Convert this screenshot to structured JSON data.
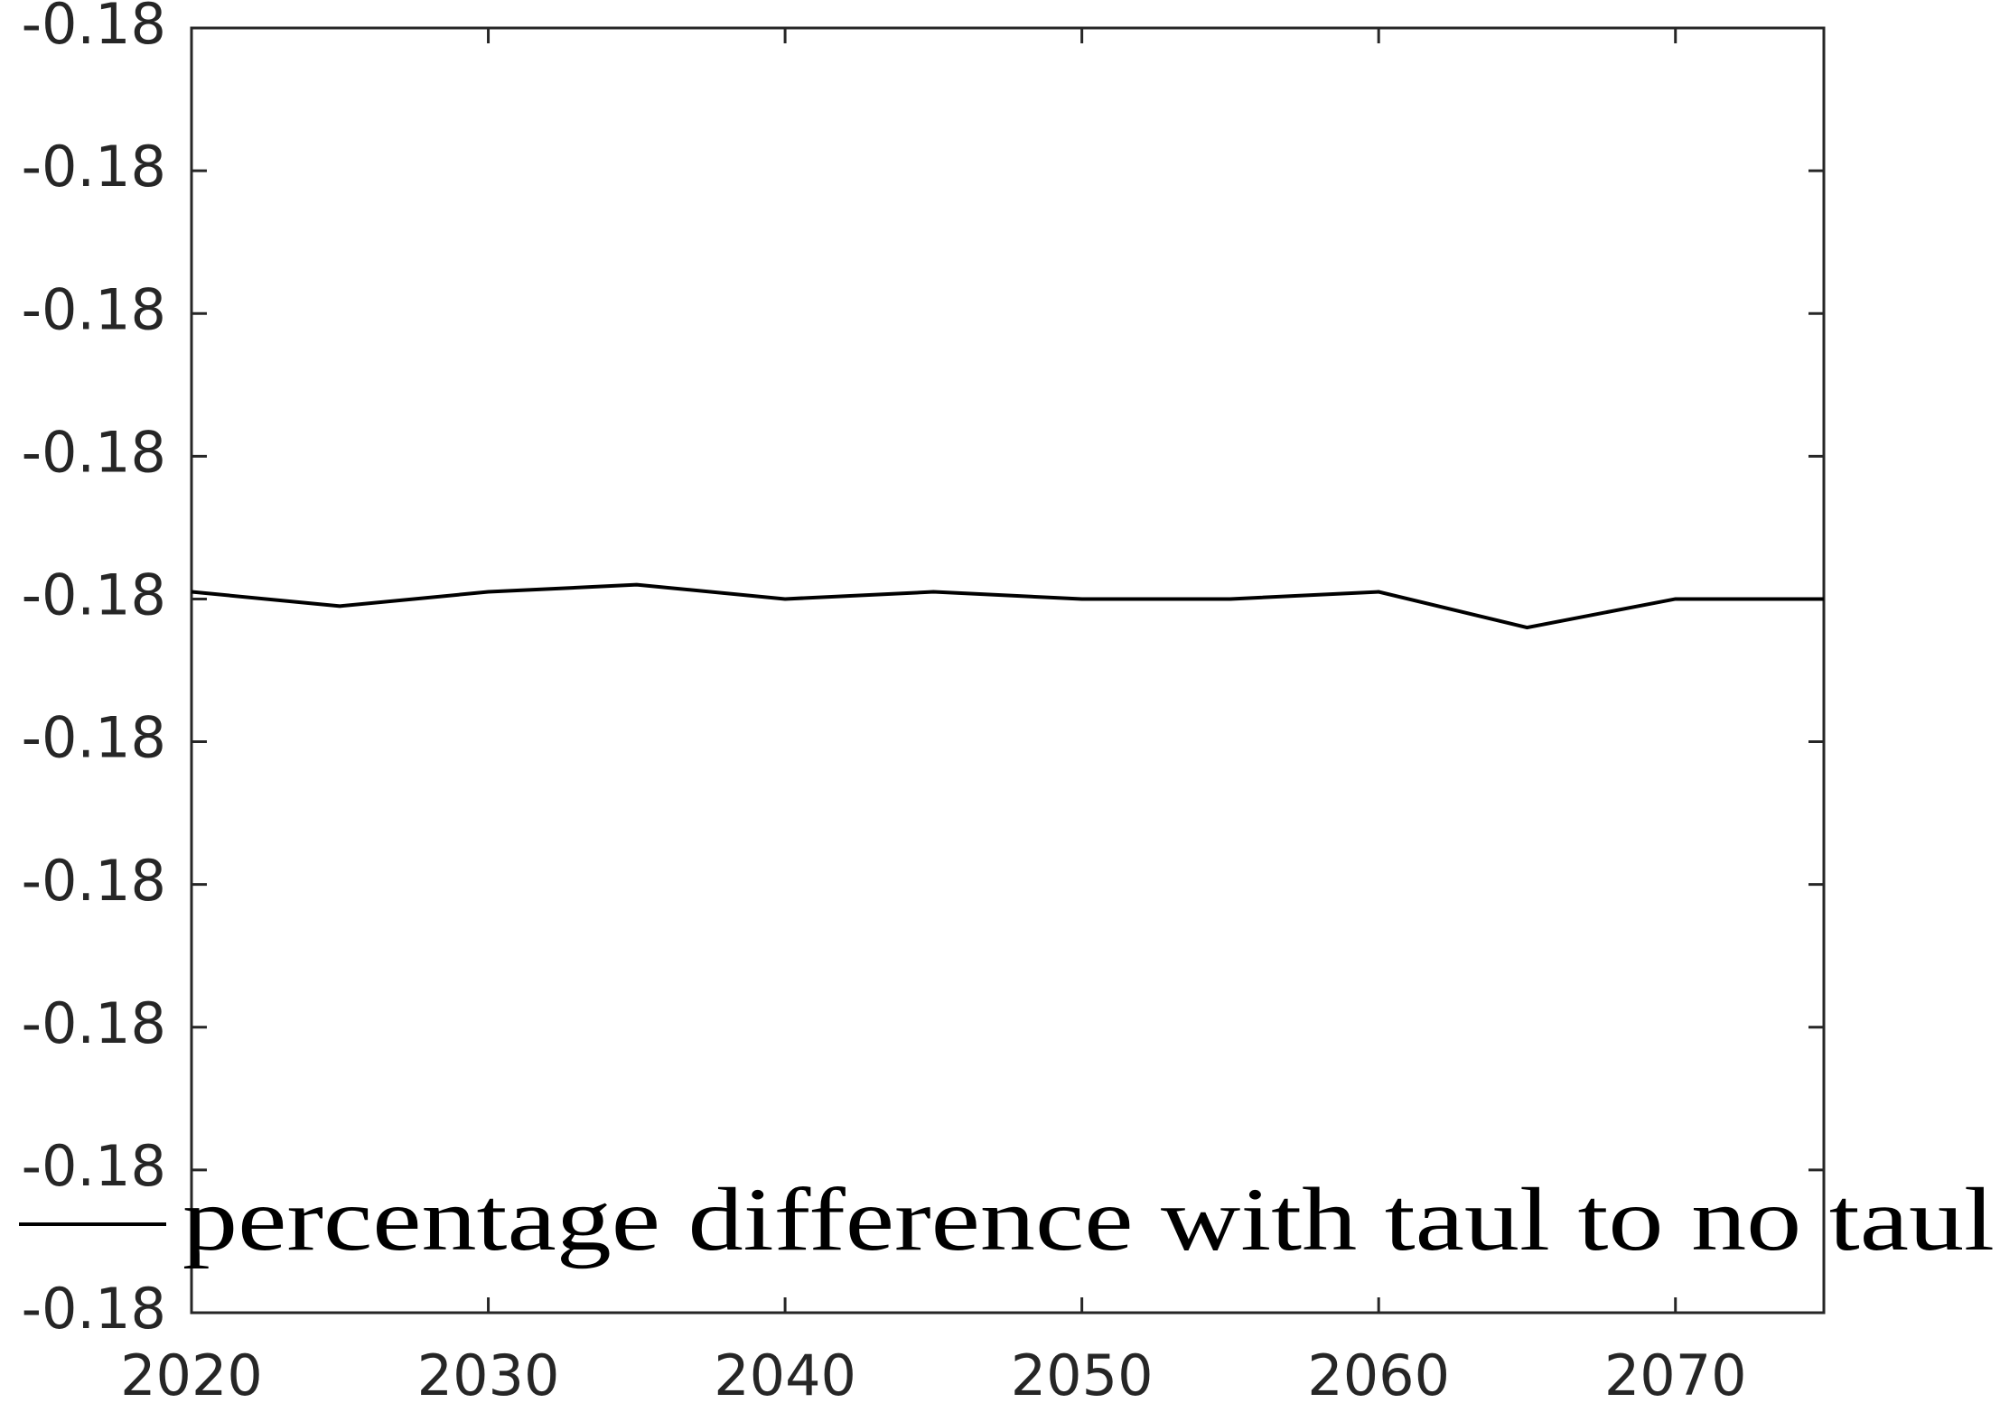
{
  "chart_data": {
    "type": "line",
    "x": [
      2020,
      2025,
      2030,
      2035,
      2040,
      2045,
      2050,
      2055,
      2060,
      2065,
      2070,
      2075
    ],
    "series": [
      {
        "name": "percentage difference with taul to no taul",
        "color": "#000000",
        "values": [
          -0.17989,
          -0.17991,
          -0.17989,
          -0.17988,
          -0.1799,
          -0.17989,
          -0.1799,
          -0.1799,
          -0.17989,
          -0.17994,
          -0.1799,
          -0.1799
        ]
      }
    ],
    "xlim": [
      2020,
      2075
    ],
    "xticks": [
      2020,
      2030,
      2040,
      2050,
      2060,
      2070
    ],
    "ylim": [
      -0.1809,
      -0.1791
    ],
    "yticks": [
      {
        "value": -0.1809,
        "label": "-0.18"
      },
      {
        "value": -0.1807,
        "label": "-0.18"
      },
      {
        "value": -0.1805,
        "label": "-0.18"
      },
      {
        "value": -0.1803,
        "label": "-0.18"
      },
      {
        "value": -0.1801,
        "label": "-0.18"
      },
      {
        "value": -0.1799,
        "label": "-0.18"
      },
      {
        "value": -0.1797,
        "label": "-0.18"
      },
      {
        "value": -0.1795,
        "label": "-0.18"
      },
      {
        "value": -0.1793,
        "label": "-0.18"
      },
      {
        "value": -0.1791,
        "label": "-0.18"
      }
    ],
    "grid": false,
    "legend": "bottom"
  }
}
